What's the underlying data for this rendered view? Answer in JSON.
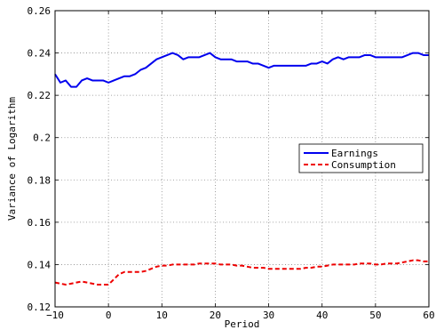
{
  "chart_data": {
    "type": "line",
    "title": "",
    "xlabel": "Period",
    "ylabel": "Variance of Logarithm",
    "xlim": [
      -10,
      60
    ],
    "ylim": [
      0.12,
      0.26
    ],
    "xticks": [
      -10,
      0,
      10,
      20,
      30,
      40,
      50,
      60
    ],
    "yticks": [
      0.12,
      0.14,
      0.16,
      0.18,
      0.2,
      0.22,
      0.24,
      0.26
    ],
    "xtick_labels": [
      "−10",
      "0",
      "10",
      "20",
      "30",
      "40",
      "50",
      "60"
    ],
    "ytick_labels": [
      "0.12",
      "0.14",
      "0.16",
      "0.18",
      "0.2",
      "0.22",
      "0.24",
      "0.26"
    ],
    "grid": true,
    "legend_position": "right-middle",
    "x": [
      -10,
      -9,
      -8,
      -7,
      -6,
      -5,
      -4,
      -3,
      -2,
      -1,
      0,
      1,
      2,
      3,
      4,
      5,
      6,
      7,
      8,
      9,
      10,
      11,
      12,
      13,
      14,
      15,
      16,
      17,
      18,
      19,
      20,
      21,
      22,
      23,
      24,
      25,
      26,
      27,
      28,
      29,
      30,
      31,
      32,
      33,
      34,
      35,
      36,
      37,
      38,
      39,
      40,
      41,
      42,
      43,
      44,
      45,
      46,
      47,
      48,
      49,
      50,
      51,
      52,
      53,
      54,
      55,
      56,
      57,
      58,
      59,
      60
    ],
    "series": [
      {
        "name": "Earnings",
        "color": "#0000ee",
        "style": "solid",
        "values": [
          0.23,
          0.226,
          0.227,
          0.224,
          0.224,
          0.227,
          0.228,
          0.227,
          0.227,
          0.227,
          0.226,
          0.227,
          0.228,
          0.229,
          0.229,
          0.23,
          0.232,
          0.233,
          0.235,
          0.237,
          0.238,
          0.239,
          0.24,
          0.239,
          0.237,
          0.238,
          0.238,
          0.238,
          0.239,
          0.24,
          0.238,
          0.237,
          0.237,
          0.237,
          0.236,
          0.236,
          0.236,
          0.235,
          0.235,
          0.234,
          0.233,
          0.234,
          0.234,
          0.234,
          0.234,
          0.234,
          0.234,
          0.234,
          0.235,
          0.235,
          0.236,
          0.235,
          0.237,
          0.238,
          0.237,
          0.238,
          0.238,
          0.238,
          0.239,
          0.239,
          0.238,
          0.238,
          0.238,
          0.238,
          0.238,
          0.238,
          0.239,
          0.24,
          0.24,
          0.239,
          0.239
        ]
      },
      {
        "name": "Consumption",
        "color": "#ee0000",
        "style": "dashed",
        "values": [
          0.1315,
          0.131,
          0.1305,
          0.131,
          0.1315,
          0.132,
          0.1315,
          0.131,
          0.1305,
          0.1305,
          0.1305,
          0.133,
          0.1355,
          0.1365,
          0.1365,
          0.1365,
          0.1365,
          0.137,
          0.138,
          0.139,
          0.1395,
          0.1395,
          0.14,
          0.14,
          0.14,
          0.14,
          0.14,
          0.1405,
          0.1405,
          0.1405,
          0.1405,
          0.14,
          0.14,
          0.14,
          0.1395,
          0.1395,
          0.139,
          0.1385,
          0.1385,
          0.1385,
          0.138,
          0.138,
          0.138,
          0.138,
          0.138,
          0.138,
          0.138,
          0.1385,
          0.1385,
          0.139,
          0.139,
          0.1395,
          0.14,
          0.14,
          0.14,
          0.14,
          0.14,
          0.1405,
          0.1405,
          0.1405,
          0.14,
          0.14,
          0.1405,
          0.1405,
          0.1405,
          0.141,
          0.1415,
          0.142,
          0.142,
          0.1415,
          0.1415
        ]
      }
    ]
  }
}
